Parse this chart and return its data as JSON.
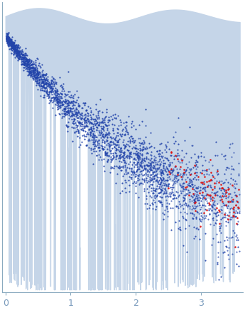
{
  "xlim": [
    -0.05,
    3.65
  ],
  "ylim": [
    -0.02,
    1.0
  ],
  "xticks": [
    0,
    1,
    2,
    3
  ],
  "background_color": "#ffffff",
  "fill_color": "#c5d5e8",
  "fill_alpha": 1.0,
  "blue_dot_color": "#2244aa",
  "red_dot_color": "#dd1111",
  "dot_size": 2.5,
  "dot_alpha": 0.9,
  "tick_color": "#8aaabf",
  "spine_color": "#8aaabf",
  "tick_label_color": "#7799bb"
}
